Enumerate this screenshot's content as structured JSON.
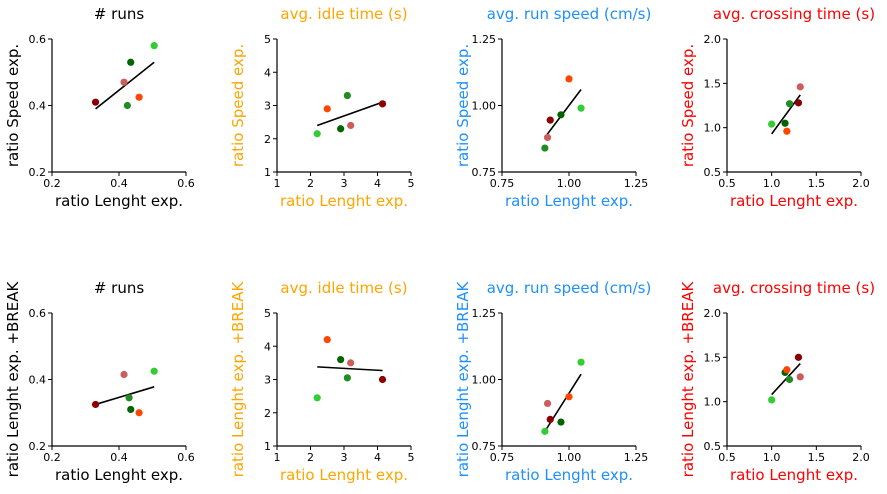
{
  "chart_data": [
    {
      "type": "scatter",
      "title": "# runs",
      "title_color": "#000000",
      "xlabel": "ratio Lenght exp.",
      "ylabel": "ratio Speed exp.",
      "label_color": "#000000",
      "xlim": [
        0.2,
        0.6
      ],
      "ylim": [
        0.2,
        0.6
      ],
      "xticks": [
        "0.2",
        "0.4",
        "0.6"
      ],
      "yticks": [
        "0.2",
        "0.4",
        "0.6"
      ],
      "points": [
        {
          "x": 0.33,
          "y": 0.41,
          "color": "#8b0000"
        },
        {
          "x": 0.415,
          "y": 0.47,
          "color": "#cd5c5c"
        },
        {
          "x": 0.425,
          "y": 0.4,
          "color": "#228b22"
        },
        {
          "x": 0.435,
          "y": 0.53,
          "color": "#006400"
        },
        {
          "x": 0.46,
          "y": 0.425,
          "color": "#ff4500"
        },
        {
          "x": 0.505,
          "y": 0.58,
          "color": "#32cd32"
        }
      ],
      "fit": [
        [
          0.33,
          0.39
        ],
        [
          0.505,
          0.53
        ]
      ]
    },
    {
      "type": "scatter",
      "title": "avg. idle time (s)",
      "title_color": "#ffa500",
      "xlabel": "ratio Lenght exp.",
      "ylabel": "ratio Speed exp.",
      "label_color": "#ffa500",
      "xlim": [
        1,
        5
      ],
      "ylim": [
        1,
        5
      ],
      "xticks": [
        "1",
        "2",
        "3",
        "4",
        "5"
      ],
      "yticks": [
        "1",
        "2",
        "3",
        "4",
        "5"
      ],
      "points": [
        {
          "x": 2.2,
          "y": 2.15,
          "color": "#32cd32"
        },
        {
          "x": 2.5,
          "y": 2.9,
          "color": "#ff4500"
        },
        {
          "x": 2.9,
          "y": 2.3,
          "color": "#006400"
        },
        {
          "x": 3.1,
          "y": 3.3,
          "color": "#228b22"
        },
        {
          "x": 3.2,
          "y": 2.4,
          "color": "#cd5c5c"
        },
        {
          "x": 4.15,
          "y": 3.05,
          "color": "#8b0000"
        }
      ],
      "fit": [
        [
          2.2,
          2.4
        ],
        [
          4.15,
          3.1
        ]
      ]
    },
    {
      "type": "scatter",
      "title": "avg. run speed (cm/s)",
      "title_color": "#1e90ff",
      "xlabel": "ratio Lenght exp.",
      "ylabel": "ratio Speed exp.",
      "label_color": "#1e90ff",
      "xlim": [
        0.75,
        1.25
      ],
      "ylim": [
        0.75,
        1.25
      ],
      "xticks": [
        "0.75",
        "1.00",
        "1.25"
      ],
      "yticks": [
        "0.75",
        "1.00",
        "1.25"
      ],
      "points": [
        {
          "x": 0.91,
          "y": 0.84,
          "color": "#228b22"
        },
        {
          "x": 0.92,
          "y": 0.88,
          "color": "#cd5c5c"
        },
        {
          "x": 0.93,
          "y": 0.945,
          "color": "#8b0000"
        },
        {
          "x": 0.97,
          "y": 0.965,
          "color": "#006400"
        },
        {
          "x": 1.0,
          "y": 1.1,
          "color": "#ff4500"
        },
        {
          "x": 1.045,
          "y": 0.99,
          "color": "#32cd32"
        }
      ],
      "fit": [
        [
          0.91,
          0.88
        ],
        [
          1.045,
          1.06
        ]
      ]
    },
    {
      "type": "scatter",
      "title": "avg. crossing time (s)",
      "title_color": "#ff0000",
      "xlabel": "ratio Lenght exp.",
      "ylabel": "ratio Speed exp.",
      "label_color": "#ff0000",
      "xlim": [
        0.5,
        2.0
      ],
      "ylim": [
        0.5,
        2.0
      ],
      "xticks": [
        "0.5",
        "1.0",
        "1.5",
        "2.0"
      ],
      "yticks": [
        "0.5",
        "1.0",
        "1.5",
        "2.0"
      ],
      "points": [
        {
          "x": 1.0,
          "y": 1.04,
          "color": "#32cd32"
        },
        {
          "x": 1.15,
          "y": 1.05,
          "color": "#006400"
        },
        {
          "x": 1.17,
          "y": 0.96,
          "color": "#ff4500"
        },
        {
          "x": 1.2,
          "y": 1.27,
          "color": "#228b22"
        },
        {
          "x": 1.3,
          "y": 1.28,
          "color": "#8b0000"
        },
        {
          "x": 1.32,
          "y": 1.46,
          "color": "#cd5c5c"
        }
      ],
      "fit": [
        [
          1.0,
          0.93
        ],
        [
          1.32,
          1.37
        ]
      ]
    },
    {
      "type": "scatter",
      "title": "# runs",
      "title_color": "#000000",
      "xlabel": "ratio Lenght exp.",
      "ylabel": "ratio Lenght exp. +BREAK",
      "label_color": "#000000",
      "xlim": [
        0.2,
        0.6
      ],
      "ylim": [
        0.2,
        0.6
      ],
      "xticks": [
        "0.2",
        "0.4",
        "0.6"
      ],
      "yticks": [
        "0.2",
        "0.4",
        "0.6"
      ],
      "points": [
        {
          "x": 0.33,
          "y": 0.325,
          "color": "#8b0000"
        },
        {
          "x": 0.415,
          "y": 0.415,
          "color": "#cd5c5c"
        },
        {
          "x": 0.43,
          "y": 0.345,
          "color": "#228b22"
        },
        {
          "x": 0.435,
          "y": 0.31,
          "color": "#006400"
        },
        {
          "x": 0.46,
          "y": 0.3,
          "color": "#ff4500"
        },
        {
          "x": 0.505,
          "y": 0.425,
          "color": "#32cd32"
        }
      ],
      "fit": [
        [
          0.33,
          0.325
        ],
        [
          0.505,
          0.378
        ]
      ]
    },
    {
      "type": "scatter",
      "title": "avg. idle time (s)",
      "title_color": "#ffa500",
      "xlabel": "ratio Lenght exp.",
      "ylabel": "ratio Lenght exp. +BREAK",
      "label_color": "#ffa500",
      "xlim": [
        1,
        5
      ],
      "ylim": [
        1,
        5
      ],
      "xticks": [
        "1",
        "2",
        "3",
        "4",
        "5"
      ],
      "yticks": [
        "1",
        "2",
        "3",
        "4",
        "5"
      ],
      "points": [
        {
          "x": 2.2,
          "y": 2.45,
          "color": "#32cd32"
        },
        {
          "x": 2.5,
          "y": 4.2,
          "color": "#ff4500"
        },
        {
          "x": 2.9,
          "y": 3.6,
          "color": "#006400"
        },
        {
          "x": 3.1,
          "y": 3.05,
          "color": "#228b22"
        },
        {
          "x": 3.2,
          "y": 3.5,
          "color": "#cd5c5c"
        },
        {
          "x": 4.15,
          "y": 3.0,
          "color": "#8b0000"
        }
      ],
      "fit": [
        [
          2.2,
          3.38
        ],
        [
          4.15,
          3.27
        ]
      ]
    },
    {
      "type": "scatter",
      "title": "avg. run speed (cm/s)",
      "title_color": "#1e90ff",
      "xlabel": "ratio Lenght exp.",
      "ylabel": "ratio Lenght exp. +BREAK",
      "label_color": "#1e90ff",
      "xlim": [
        0.75,
        1.25
      ],
      "ylim": [
        0.75,
        1.25
      ],
      "xticks": [
        "0.75",
        "1.00",
        "1.25"
      ],
      "yticks": [
        "0.75",
        "1.00",
        "1.25"
      ],
      "points": [
        {
          "x": 0.91,
          "y": 0.805,
          "color": "#32cd32"
        },
        {
          "x": 0.92,
          "y": 0.91,
          "color": "#cd5c5c"
        },
        {
          "x": 0.93,
          "y": 0.85,
          "color": "#8b0000"
        },
        {
          "x": 0.97,
          "y": 0.84,
          "color": "#006400"
        },
        {
          "x": 1.0,
          "y": 0.935,
          "color": "#ff4500"
        },
        {
          "x": 1.045,
          "y": 1.065,
          "color": "#32cd32"
        }
      ],
      "fit": [
        [
          0.91,
          0.805
        ],
        [
          1.045,
          1.02
        ]
      ]
    },
    {
      "type": "scatter",
      "title": "avg. crossing time (s)",
      "title_color": "#ff0000",
      "xlabel": "ratio Lenght exp.",
      "ylabel": "ratio Lenght exp. +BREAK",
      "label_color": "#ff0000",
      "xlim": [
        0.5,
        2.0
      ],
      "ylim": [
        0.5,
        2.0
      ],
      "xticks": [
        "0.5",
        "1.0",
        "1.5",
        "2.0"
      ],
      "yticks": [
        "0.5",
        "1.0",
        "1.5",
        "2.0"
      ],
      "points": [
        {
          "x": 1.0,
          "y": 1.02,
          "color": "#32cd32"
        },
        {
          "x": 1.15,
          "y": 1.33,
          "color": "#006400"
        },
        {
          "x": 1.17,
          "y": 1.36,
          "color": "#ff4500"
        },
        {
          "x": 1.2,
          "y": 1.25,
          "color": "#228b22"
        },
        {
          "x": 1.3,
          "y": 1.5,
          "color": "#8b0000"
        },
        {
          "x": 1.32,
          "y": 1.28,
          "color": "#cd5c5c"
        }
      ],
      "fit": [
        [
          1.0,
          1.08
        ],
        [
          1.32,
          1.43
        ]
      ]
    }
  ]
}
